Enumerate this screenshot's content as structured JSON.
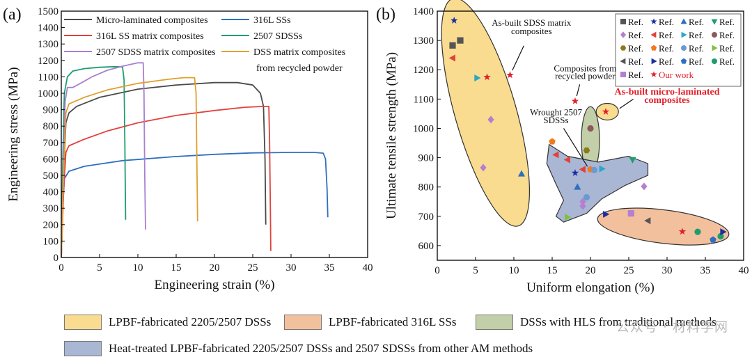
{
  "chart_data": [
    {
      "panel_label": "(a)",
      "type": "line",
      "xlabel": "Engineering strain (%)",
      "ylabel": "Engineering stress (MPa)",
      "xlim": [
        0,
        40
      ],
      "ylim": [
        0,
        1500
      ],
      "xticks": [
        0,
        5,
        10,
        15,
        20,
        25,
        30,
        35,
        40
      ],
      "yticks": [
        0,
        100,
        200,
        300,
        400,
        500,
        600,
        700,
        800,
        900,
        1000,
        1100,
        1200,
        1300,
        1400,
        1500
      ],
      "legend_position": "top",
      "series": [
        {
          "name": "Micro-laminated composites",
          "color": "#4a4a4a",
          "points": [
            [
              0,
              0
            ],
            [
              0.3,
              500
            ],
            [
              0.6,
              820
            ],
            [
              1,
              880
            ],
            [
              2,
              920
            ],
            [
              5,
              975
            ],
            [
              10,
              1025
            ],
            [
              15,
              1050
            ],
            [
              20,
              1065
            ],
            [
              23,
              1065
            ],
            [
              25,
              1050
            ],
            [
              26,
              1000
            ],
            [
              26.4,
              920
            ],
            [
              26.6,
              600
            ],
            [
              26.7,
              200
            ]
          ]
        },
        {
          "name": "316L SSs",
          "color": "#2e6fbf",
          "points": [
            [
              0,
              0
            ],
            [
              0.2,
              300
            ],
            [
              0.4,
              480
            ],
            [
              1,
              525
            ],
            [
              3,
              555
            ],
            [
              8,
              590
            ],
            [
              15,
              615
            ],
            [
              20,
              628
            ],
            [
              25,
              637
            ],
            [
              30,
              640
            ],
            [
              33,
              640
            ],
            [
              34.2,
              635
            ],
            [
              34.5,
              600
            ],
            [
              34.7,
              420
            ],
            [
              34.8,
              245
            ]
          ]
        },
        {
          "name": "316L SS matrix composites",
          "color": "#e2413b",
          "points": [
            [
              0,
              0
            ],
            [
              0.3,
              400
            ],
            [
              0.6,
              640
            ],
            [
              1,
              680
            ],
            [
              3,
              720
            ],
            [
              6,
              770
            ],
            [
              10,
              820
            ],
            [
              15,
              865
            ],
            [
              20,
              895
            ],
            [
              24,
              915
            ],
            [
              26.5,
              920
            ],
            [
              27.1,
              920
            ],
            [
              27.2,
              700
            ],
            [
              27.3,
              300
            ],
            [
              27.35,
              40
            ]
          ]
        },
        {
          "name": "2507 SDSSs",
          "color": "#1f9c6e",
          "points": [
            [
              0,
              0
            ],
            [
              0.2,
              600
            ],
            [
              0.4,
              1000
            ],
            [
              0.8,
              1100
            ],
            [
              1.5,
              1135
            ],
            [
              3,
              1150
            ],
            [
              5,
              1158
            ],
            [
              7,
              1162
            ],
            [
              8,
              1160
            ],
            [
              8.2,
              1080
            ],
            [
              8.3,
              700
            ],
            [
              8.4,
              230
            ]
          ]
        },
        {
          "name": "2507 SDSS matrix composites",
          "color": "#a97fd0",
          "points": [
            [
              0,
              0
            ],
            [
              0.3,
              600
            ],
            [
              0.5,
              950
            ],
            [
              0.8,
              1035
            ],
            [
              1.5,
              1035
            ],
            [
              2.5,
              1060
            ],
            [
              4,
              1100
            ],
            [
              6,
              1140
            ],
            [
              8,
              1165
            ],
            [
              10,
              1185
            ],
            [
              10.7,
              1185
            ],
            [
              10.8,
              1000
            ],
            [
              10.9,
              500
            ],
            [
              11,
              170
            ]
          ]
        },
        {
          "name": "DSS matrix composites from recycled powder",
          "color": "#e1a02e",
          "points": [
            [
              0,
              0
            ],
            [
              0.3,
              500
            ],
            [
              0.6,
              880
            ],
            [
              1,
              935
            ],
            [
              3,
              975
            ],
            [
              6,
              1020
            ],
            [
              10,
              1060
            ],
            [
              14,
              1085
            ],
            [
              16,
              1095
            ],
            [
              17.4,
              1095
            ],
            [
              17.6,
              1000
            ],
            [
              17.7,
              600
            ],
            [
              17.8,
              220
            ]
          ]
        }
      ]
    },
    {
      "panel_label": "(b)",
      "type": "scatter",
      "xlabel": "Uniform elongation (%)",
      "ylabel": "Ultimate tensile strength (MPa)",
      "xlim": [
        0,
        40
      ],
      "ylim": [
        550,
        1400
      ],
      "xticks": [
        0,
        5,
        10,
        15,
        20,
        25,
        30,
        35,
        40
      ],
      "yticks": [
        600,
        700,
        800,
        900,
        1000,
        1100,
        1200,
        1300,
        1400
      ],
      "legend_position": "top-right",
      "legend_entries": [
        {
          "marker": "square",
          "color": "#555555",
          "label": "Ref."
        },
        {
          "marker": "star",
          "color": "#1b2ea0",
          "label": "Ref."
        },
        {
          "marker": "triangle-up",
          "color": "#2e6fbf",
          "label": "Ref."
        },
        {
          "marker": "triangle-down",
          "color": "#1f9c6e",
          "label": "Ref."
        },
        {
          "marker": "diamond",
          "color": "#b57fd0",
          "label": "Ref."
        },
        {
          "marker": "triangle-left",
          "color": "#e2413b",
          "label": "Ref."
        },
        {
          "marker": "triangle-right",
          "color": "#2aa6c9",
          "label": "Ref."
        },
        {
          "marker": "circle",
          "color": "#8b5a5a",
          "label": "Ref."
        },
        {
          "marker": "hexagon",
          "color": "#8a7a1a",
          "label": "Ref."
        },
        {
          "marker": "pentagon",
          "color": "#f07a1e",
          "label": "Ref."
        },
        {
          "marker": "circle",
          "color": "#6a9ad0",
          "label": "Ref."
        },
        {
          "marker": "triangle-right",
          "color": "#7fc03a",
          "label": "Ref."
        },
        {
          "marker": "triangle-left",
          "color": "#555555",
          "label": "Ref."
        },
        {
          "marker": "triangle-right",
          "color": "#1b2ea0",
          "label": "Ref."
        },
        {
          "marker": "pentagon",
          "color": "#2e6fbf",
          "label": "Ref."
        },
        {
          "marker": "circle",
          "color": "#1f9c6e",
          "label": "Ref."
        },
        {
          "marker": "square",
          "color": "#b57fd0",
          "label": "Ref."
        },
        {
          "marker": "star",
          "color": "#e2202a",
          "label": "Our work"
        }
      ],
      "points": [
        {
          "x": 2.0,
          "y": 1283,
          "marker": "square",
          "color": "#555555"
        },
        {
          "x": 3.0,
          "y": 1300,
          "marker": "square",
          "color": "#555555"
        },
        {
          "x": 2.2,
          "y": 1368,
          "marker": "star",
          "color": "#1b2ea0"
        },
        {
          "x": 2.0,
          "y": 1240,
          "marker": "triangle-left",
          "color": "#e2413b"
        },
        {
          "x": 5.2,
          "y": 1172,
          "marker": "triangle-right",
          "color": "#2aa6c9"
        },
        {
          "x": 6.5,
          "y": 1175,
          "marker": "star",
          "color": "#e2202a"
        },
        {
          "x": 9.5,
          "y": 1182,
          "marker": "star",
          "color": "#e2202a"
        },
        {
          "x": 7.0,
          "y": 1030,
          "marker": "diamond",
          "color": "#b57fd0"
        },
        {
          "x": 6.0,
          "y": 866,
          "marker": "diamond",
          "color": "#b57fd0"
        },
        {
          "x": 11.0,
          "y": 845,
          "marker": "triangle-up",
          "color": "#2e6fbf"
        },
        {
          "x": 18.0,
          "y": 1093,
          "marker": "star",
          "color": "#e2202a"
        },
        {
          "x": 22.0,
          "y": 1057,
          "marker": "star",
          "color": "#e2202a"
        },
        {
          "x": 20.0,
          "y": 1000,
          "marker": "circle",
          "color": "#8b5a5a"
        },
        {
          "x": 19.5,
          "y": 925,
          "marker": "hexagon",
          "color": "#8a7a1a"
        },
        {
          "x": 15.0,
          "y": 955,
          "marker": "pentagon",
          "color": "#f07a1e"
        },
        {
          "x": 15.5,
          "y": 910,
          "marker": "triangle-left",
          "color": "#e2413b"
        },
        {
          "x": 17.0,
          "y": 893,
          "marker": "triangle-left",
          "color": "#e2413b"
        },
        {
          "x": 19.0,
          "y": 860,
          "marker": "triangle-left",
          "color": "#e2413b"
        },
        {
          "x": 18.0,
          "y": 848,
          "marker": "star",
          "color": "#1b2ea0"
        },
        {
          "x": 20.0,
          "y": 860,
          "marker": "pentagon",
          "color": "#f07a1e"
        },
        {
          "x": 20.5,
          "y": 858,
          "marker": "circle",
          "color": "#6a9ad0"
        },
        {
          "x": 21.5,
          "y": 862,
          "marker": "triangle-right",
          "color": "#2aa6c9"
        },
        {
          "x": 25.5,
          "y": 893,
          "marker": "triangle-down",
          "color": "#1f9c6e"
        },
        {
          "x": 18.3,
          "y": 800,
          "marker": "triangle-up",
          "color": "#2e6fbf"
        },
        {
          "x": 19.0,
          "y": 750,
          "marker": "diamond",
          "color": "#b57fd0"
        },
        {
          "x": 19.0,
          "y": 735,
          "marker": "diamond",
          "color": "#b57fd0"
        },
        {
          "x": 19.5,
          "y": 765,
          "marker": "circle",
          "color": "#6a9ad0"
        },
        {
          "x": 17.0,
          "y": 697,
          "marker": "triangle-right",
          "color": "#7fc03a"
        },
        {
          "x": 27.0,
          "y": 802,
          "marker": "diamond",
          "color": "#b57fd0"
        },
        {
          "x": 22.0,
          "y": 707,
          "marker": "triangle-right",
          "color": "#1b2ea0"
        },
        {
          "x": 25.3,
          "y": 710,
          "marker": "square",
          "color": "#b57fd0"
        },
        {
          "x": 27.5,
          "y": 685,
          "marker": "triangle-left",
          "color": "#555555"
        },
        {
          "x": 32.0,
          "y": 648,
          "marker": "star",
          "color": "#e2202a"
        },
        {
          "x": 34.0,
          "y": 647,
          "marker": "circle",
          "color": "#1f9c6e"
        },
        {
          "x": 36.0,
          "y": 620,
          "marker": "pentagon",
          "color": "#2e6fbf"
        },
        {
          "x": 37.0,
          "y": 632,
          "marker": "circle",
          "color": "#1f9c6e"
        },
        {
          "x": 37.3,
          "y": 647,
          "marker": "triangle-right",
          "color": "#1b2ea0"
        }
      ],
      "regions": [
        {
          "label": "LPBF-fabricated 2205/2507 DSSs",
          "color": "#f9dc8f"
        },
        {
          "label": "LPBF-fabricated 316L SSs",
          "color": "#f3c09e"
        },
        {
          "label": "DSSs with HLS from traditional methods",
          "color": "#c3cfa8"
        },
        {
          "label": "Heat-treated LPBF-fabricated 2205/2507 DSSs and 2507 SDSSs from other AM methods",
          "color": "#a9b6d4"
        }
      ],
      "annotations": [
        {
          "lines": [
            "As-built SDSS matrix",
            "composites"
          ],
          "color": "#111111"
        },
        {
          "lines": [
            "Composites from",
            "recycled powder"
          ],
          "color": "#111111"
        },
        {
          "lines": [
            "As-built micro-laminated",
            "composites"
          ],
          "color": "#e2202a"
        },
        {
          "lines": [
            "Wrought 2507",
            "SDSSs"
          ],
          "color": "#111111"
        }
      ]
    }
  ],
  "watermark": "公众号 · 材料学网"
}
